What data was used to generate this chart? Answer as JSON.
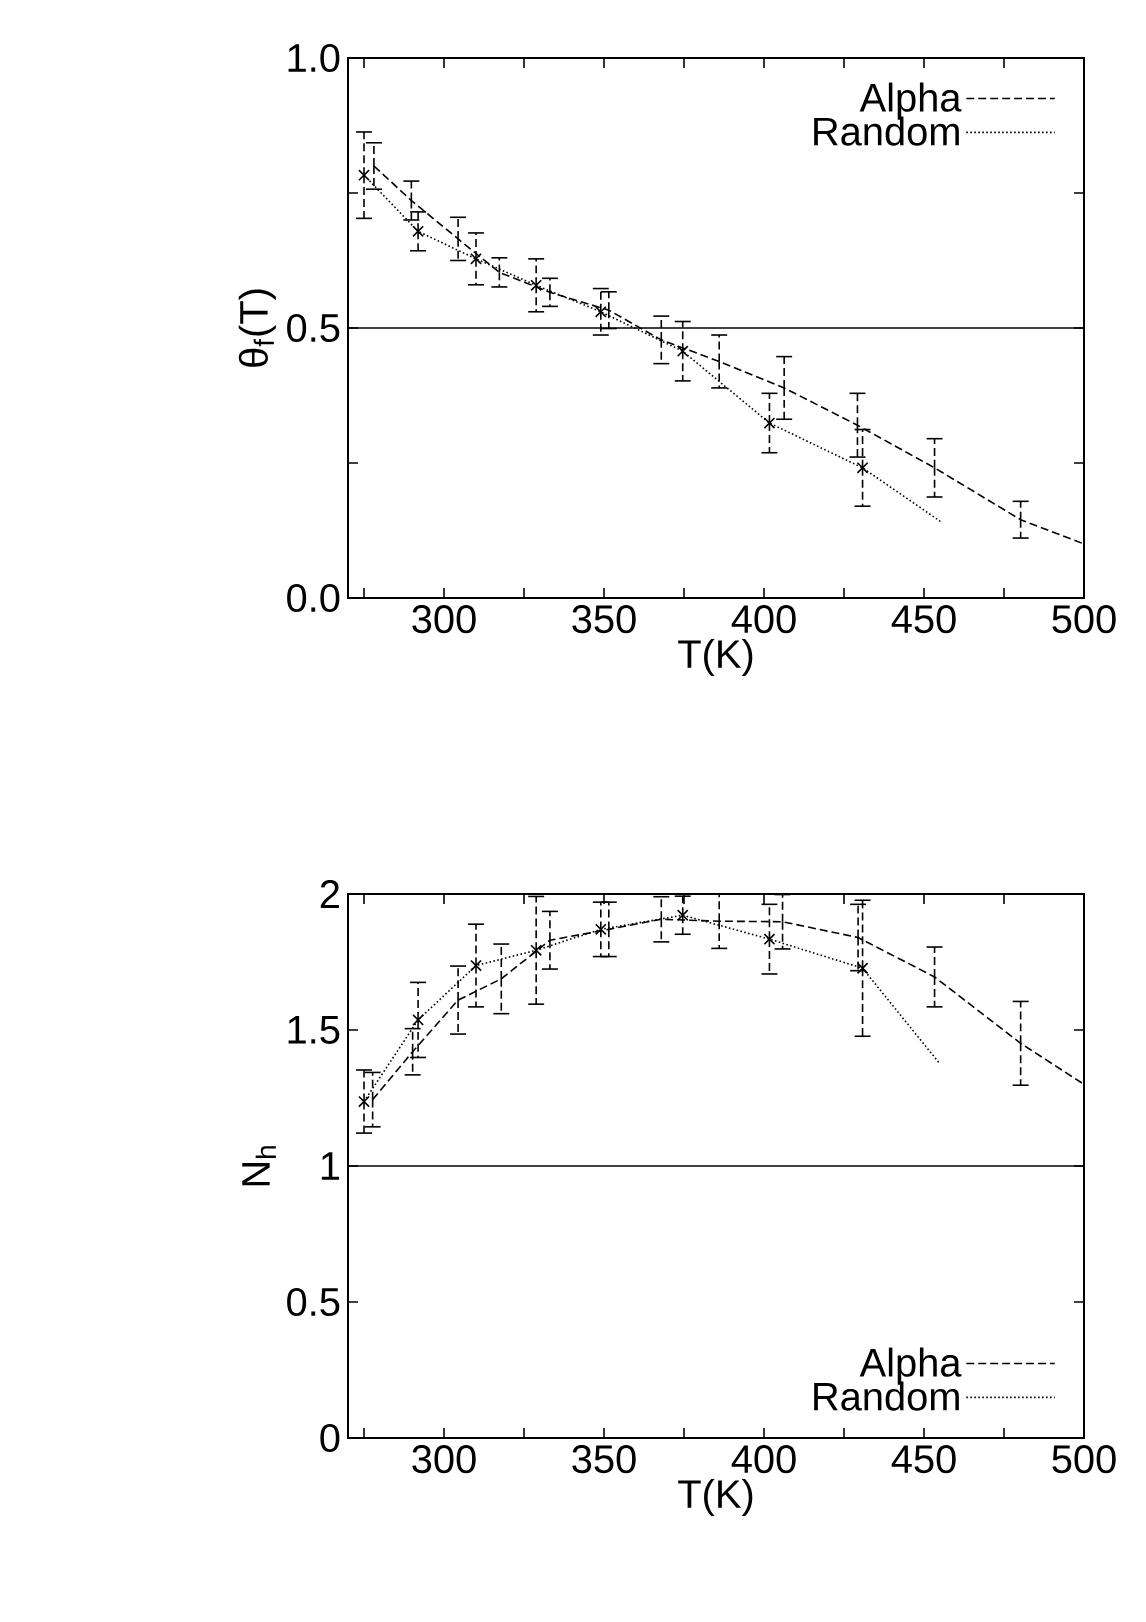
{
  "chart_data": [
    {
      "type": "line",
      "xlabel": "T(K)",
      "ylabel": "θ$_{f}$(T)",
      "xlim": [
        270,
        500
      ],
      "ylim": [
        0,
        1
      ],
      "xticks": [
        {
          "value": 275,
          "label": null
        },
        300,
        {
          "value": 325,
          "label": null
        },
        350,
        {
          "value": 375,
          "label": null
        },
        400,
        {
          "value": 425,
          "label": null
        },
        450,
        {
          "value": 475,
          "label": null
        },
        500
      ],
      "yticks": [
        {
          "value": 0,
          "label": "0.0"
        },
        {
          "value": 0.25,
          "label": null
        },
        0.5,
        {
          "value": 0.75,
          "label": null
        },
        {
          "value": 1,
          "label": "1.0"
        }
      ],
      "legend": "top right",
      "grid": false,
      "ref_lines": [
        {
          "axis": "y",
          "value": 0.5,
          "color": "#000000",
          "line_style": "solid"
        }
      ],
      "series": [
        {
          "name": "Alpha",
          "line_style": "dashed",
          "marker": "none",
          "color": "#000000",
          "x": [
            278.1,
            289.8,
            304.4,
            317.3,
            333.1,
            351.5,
            367.9,
            386,
            406.3,
            429.2,
            453.3,
            480.2,
            500
          ],
          "values": [
            0.8,
            0.736,
            0.665,
            0.603,
            0.566,
            0.533,
            0.478,
            0.438,
            0.389,
            0.32,
            0.241,
            0.145,
            0.1
          ],
          "errors": [
            0.043,
            0.036,
            0.04,
            0.027,
            0.026,
            0.034,
            0.044,
            0.049,
            0.058,
            0.059,
            0.054,
            0.034,
            null
          ]
        },
        {
          "name": "Random",
          "line_style": "dotted",
          "marker": "none",
          "color": "#000000",
          "x": [
            275,
            291.9,
            310,
            328.8,
            349,
            374.6,
            401.7,
            430.8,
            455.8
          ],
          "values": [
            0.783,
            0.679,
            0.628,
            0.579,
            0.53,
            0.457,
            0.324,
            0.241,
            0.139
          ]
        },
        {
          "type": "scatter",
          "marker": "cross",
          "line_style": "dashed",
          "color": "#000000",
          "x": [
            275,
            291.9,
            310,
            328.8,
            349,
            374.6,
            401.7,
            430.8
          ],
          "values": [
            0.783,
            0.679,
            0.628,
            0.579,
            0.53,
            0.457,
            0.324,
            0.241
          ],
          "errors": [
            0.08,
            0.036,
            0.048,
            0.049,
            0.043,
            0.055,
            0.055,
            0.071
          ]
        }
      ]
    },
    {
      "type": "line",
      "xlabel": "T(K)",
      "ylabel": "N$_{h}$",
      "xlim": [
        270,
        500
      ],
      "ylim": [
        0,
        2
      ],
      "xticks": [
        {
          "value": 275,
          "label": null
        },
        300,
        {
          "value": 325,
          "label": null
        },
        350,
        {
          "value": 375,
          "label": null
        },
        400,
        {
          "value": 425,
          "label": null
        },
        450,
        {
          "value": 475,
          "label": null
        },
        500
      ],
      "yticks": [
        0,
        0.5,
        1,
        1.5,
        2
      ],
      "legend": "bottom right",
      "grid": false,
      "ref_lines": [
        {
          "axis": "y",
          "value": 1,
          "color": "#000000",
          "line_style": "solid"
        }
      ],
      "series": [
        {
          "name": "Alpha",
          "line_style": "dashed",
          "marker": "none",
          "color": "#000000",
          "x": [
            277.7,
            290.2,
            304.4,
            317.9,
            333.1,
            351.5,
            367.9,
            386,
            405.8,
            429.4,
            453.3,
            480.2,
            500
          ],
          "values": [
            1.244,
            1.42,
            1.61,
            1.688,
            1.83,
            1.87,
            1.907,
            1.9,
            1.898,
            1.84,
            1.695,
            1.451,
            1.3
          ],
          "errors": [
            0.1,
            0.085,
            0.125,
            0.128,
            0.106,
            0.1,
            0.083,
            0.1,
            0.1,
            0.122,
            0.11,
            0.154,
            null
          ]
        },
        {
          "name": "Random",
          "line_style": "dotted",
          "marker": "none",
          "color": "#000000",
          "x": [
            275,
            291.9,
            310,
            328.8,
            349,
            374.6,
            401.7,
            430.8,
            454.8
          ],
          "values": [
            1.237,
            1.537,
            1.737,
            1.793,
            1.87,
            1.922,
            1.834,
            1.727,
            1.378
          ]
        },
        {
          "type": "scatter",
          "marker": "cross",
          "line_style": "dashed",
          "color": "#000000",
          "x": [
            275,
            291.9,
            310,
            328.8,
            349,
            374.6,
            401.7,
            430.8
          ],
          "values": [
            1.237,
            1.537,
            1.737,
            1.793,
            1.87,
            1.922,
            1.834,
            1.727
          ],
          "errors": [
            0.116,
            0.138,
            0.152,
            0.198,
            0.1,
            0.07,
            0.128,
            0.25
          ]
        }
      ]
    }
  ]
}
